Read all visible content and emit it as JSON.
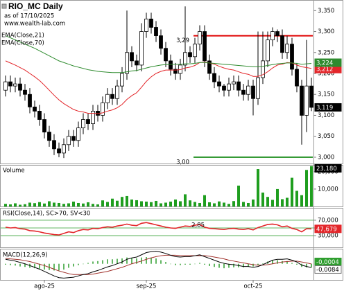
{
  "chart_data": [
    {
      "type": "candlestick",
      "title": "RIO_MC Daily",
      "subtitle": "as of 17/10/2025",
      "source": "www.wealth-lab.com",
      "categories": [
        null,
        null,
        null,
        null,
        null,
        null,
        null,
        null,
        "ago-25",
        null,
        null,
        null,
        null,
        null,
        null,
        null,
        null,
        null,
        null,
        null,
        null,
        null,
        null,
        null,
        null,
        null,
        null,
        null,
        null,
        "sep-25",
        null,
        null,
        null,
        null,
        null,
        null,
        null,
        null,
        null,
        null,
        null,
        null,
        null,
        null,
        null,
        null,
        null,
        null,
        null,
        null,
        null,
        "oct-25",
        null,
        null,
        null,
        null,
        null,
        null,
        null,
        null,
        null,
        null,
        null,
        null
      ],
      "open": [
        3.16,
        3.18,
        3.17,
        3.175,
        3.16,
        3.15,
        3.12,
        3.11,
        3.09,
        3.06,
        3.04,
        3.02,
        3.01,
        3.03,
        3.05,
        3.04,
        3.07,
        3.09,
        3.08,
        3.11,
        3.1,
        3.13,
        3.15,
        3.14,
        3.17,
        3.2,
        3.25,
        3.23,
        3.22,
        3.3,
        3.33,
        3.31,
        3.29,
        3.26,
        3.23,
        3.21,
        3.2,
        3.22,
        3.25,
        3.24,
        3.27,
        3.3,
        3.23,
        3.2,
        3.18,
        3.17,
        3.16,
        3.175,
        3.18,
        3.16,
        3.15,
        3.17,
        3.14,
        3.19,
        3.23,
        3.28,
        3.3,
        3.29,
        3.25,
        3.27,
        3.21,
        3.17,
        3.1,
        3.17
      ],
      "high": [
        3.195,
        3.195,
        3.19,
        3.19,
        3.175,
        3.165,
        3.135,
        3.125,
        3.105,
        3.075,
        3.055,
        3.035,
        3.045,
        3.065,
        3.065,
        3.085,
        3.105,
        3.105,
        3.125,
        3.125,
        3.145,
        3.165,
        3.165,
        3.185,
        3.215,
        3.35,
        3.265,
        3.245,
        3.32,
        3.345,
        3.345,
        3.325,
        3.305,
        3.275,
        3.245,
        3.225,
        3.235,
        3.36,
        3.265,
        3.285,
        3.315,
        3.315,
        3.245,
        3.215,
        3.195,
        3.175,
        3.19,
        3.195,
        3.195,
        3.175,
        3.185,
        3.185,
        3.3,
        3.3,
        3.3,
        3.31,
        3.305,
        3.305,
        3.29,
        3.285,
        3.225,
        3.185,
        3.28,
        3.19
      ],
      "low": [
        3.145,
        3.155,
        3.155,
        3.145,
        3.135,
        3.105,
        3.095,
        3.075,
        3.045,
        3.025,
        3.005,
        3.0,
        2.998,
        3.015,
        3.025,
        3.025,
        3.055,
        3.065,
        3.065,
        3.085,
        3.085,
        3.115,
        3.125,
        3.125,
        3.155,
        3.185,
        3.215,
        3.205,
        3.205,
        3.285,
        3.295,
        3.275,
        3.245,
        3.215,
        3.195,
        3.185,
        3.185,
        3.205,
        3.225,
        3.225,
        3.255,
        3.215,
        3.185,
        3.165,
        3.155,
        3.145,
        3.145,
        3.16,
        3.145,
        3.135,
        3.135,
        3.1,
        3.125,
        3.175,
        3.215,
        3.265,
        3.275,
        3.235,
        3.235,
        3.195,
        3.155,
        3.03,
        3.06,
        3.11
      ],
      "close": [
        3.18,
        3.17,
        3.175,
        3.16,
        3.15,
        3.12,
        3.11,
        3.09,
        3.06,
        3.04,
        3.02,
        3.01,
        3.03,
        3.05,
        3.04,
        3.07,
        3.09,
        3.08,
        3.11,
        3.1,
        3.13,
        3.15,
        3.14,
        3.17,
        3.2,
        3.25,
        3.23,
        3.22,
        3.3,
        3.33,
        3.31,
        3.29,
        3.26,
        3.23,
        3.21,
        3.2,
        3.22,
        3.25,
        3.24,
        3.27,
        3.3,
        3.23,
        3.2,
        3.18,
        3.17,
        3.16,
        3.175,
        3.18,
        3.16,
        3.15,
        3.17,
        3.14,
        3.19,
        3.23,
        3.28,
        3.3,
        3.29,
        3.25,
        3.27,
        3.21,
        3.17,
        3.1,
        3.17,
        3.119
      ],
      "close_label": "3,119",
      "up_color": "#ffffff",
      "down_color": "#000000",
      "series": [
        {
          "name": "EMA(Close,21)",
          "color": "#e3262a",
          "last_label": "3,212",
          "values": [
            3.23,
            3.225,
            3.22,
            3.214,
            3.208,
            3.2,
            3.192,
            3.183,
            3.172,
            3.16,
            3.148,
            3.137,
            3.128,
            3.121,
            3.114,
            3.11,
            3.108,
            3.105,
            3.105,
            3.104,
            3.106,
            3.11,
            3.113,
            3.118,
            3.126,
            3.138,
            3.147,
            3.154,
            3.167,
            3.181,
            3.192,
            3.2,
            3.205,
            3.208,
            3.208,
            3.208,
            3.209,
            3.213,
            3.215,
            3.219,
            3.226,
            3.227,
            3.225,
            3.222,
            3.217,
            3.213,
            3.21,
            3.208,
            3.204,
            3.2,
            3.198,
            3.193,
            3.193,
            3.197,
            3.204,
            3.213,
            3.22,
            3.222,
            3.226,
            3.225,
            3.22,
            3.216,
            3.214,
            3.212
          ]
        },
        {
          "name": "EMA(Close,70)",
          "color": "#2e8b2e",
          "last_label": "3,224",
          "values": [
            3.29,
            3.285,
            3.28,
            3.275,
            3.27,
            3.265,
            3.26,
            3.254,
            3.248,
            3.242,
            3.236,
            3.23,
            3.226,
            3.222,
            3.218,
            3.215,
            3.212,
            3.209,
            3.207,
            3.205,
            3.204,
            3.203,
            3.202,
            3.202,
            3.202,
            3.204,
            3.206,
            3.207,
            3.21,
            3.213,
            3.216,
            3.218,
            3.22,
            3.221,
            3.222,
            3.222,
            3.222,
            3.223,
            3.223,
            3.224,
            3.226,
            3.226,
            3.225,
            3.224,
            3.223,
            3.222,
            3.221,
            3.22,
            3.219,
            3.218,
            3.217,
            3.216,
            3.216,
            3.217,
            3.219,
            3.221,
            3.223,
            3.224,
            3.225,
            3.225,
            3.224,
            3.222,
            3.223,
            3.224
          ]
        }
      ],
      "levels": [
        {
          "value": 3.29,
          "label": "3,29",
          "color": "#e00000",
          "from": 39,
          "to": 63
        },
        {
          "value": 3.0,
          "label": "3,00",
          "color": "#1f8f1f",
          "from": 39,
          "to": 63
        }
      ],
      "ylim": [
        2.985,
        3.372
      ],
      "yticks": [
        {
          "value": 3.0,
          "label": "3,000"
        },
        {
          "value": 3.05,
          "label": "3,050"
        },
        {
          "value": 3.1,
          "label": "3,100"
        },
        {
          "value": 3.15,
          "label": "3,150"
        },
        {
          "value": 3.2,
          "label": "3,200"
        },
        {
          "value": 3.25,
          "label": "3,250"
        },
        {
          "value": 3.3,
          "label": "3,300"
        },
        {
          "value": 3.35,
          "label": "3,350"
        }
      ]
    },
    {
      "type": "bar",
      "title": "Volume",
      "color": "#1f9e1f",
      "last_label": "23,180",
      "values": [
        1.5,
        1.2,
        1.8,
        1.0,
        1.3,
        2.2,
        1.9,
        2.5,
        1.7,
        3.0,
        2.2,
        2.0,
        1.5,
        1.8,
        2.8,
        2.0,
        1.7,
        2.4,
        1.5,
        1.2,
        3.5,
        2.6,
        4.5,
        3.3,
        5.5,
        6.0,
        4.0,
        3.6,
        3.0,
        2.8,
        2.5,
        3.2,
        1.8,
        2.2,
        2.8,
        4.0,
        3.0,
        7.0,
        3.5,
        2.6,
        2.0,
        6.5,
        2.4,
        1.8,
        2.9,
        2.2,
        1.5,
        3.1,
        12.0,
        2.6,
        2.0,
        4.0,
        21.5,
        8.0,
        5.5,
        3.8,
        10.0,
        4.2,
        5.0,
        16.5,
        9.0,
        6.5,
        21.0,
        23.18
      ],
      "ylim": [
        0,
        23.5
      ],
      "yticks": [
        {
          "value": 10,
          "label": "10,000"
        },
        {
          "value": 20,
          "label": "20,000"
        }
      ]
    },
    {
      "type": "line",
      "title": "RSI(Close,14), SC>70, SV<30",
      "color": "#e3262a",
      "grid_color": "#2e9e2e",
      "last_label": "47,679",
      "annotation": "2,85",
      "values": [
        52,
        50,
        51,
        48,
        47,
        43,
        42,
        40,
        37,
        35,
        33,
        32,
        36,
        40,
        38,
        43,
        46,
        45,
        49,
        48,
        51,
        53,
        52,
        55,
        57,
        60,
        57,
        56,
        62,
        64,
        61,
        58,
        55,
        52,
        50,
        49,
        52,
        55,
        54,
        57,
        59,
        52,
        49,
        48,
        47,
        46,
        48,
        49,
        47,
        46,
        48,
        45,
        51,
        55,
        59,
        60,
        58,
        53,
        55,
        49,
        46,
        40,
        48,
        47.679
      ],
      "ylim": [
        0,
        100
      ],
      "yticks": [
        {
          "value": 30,
          "label": "30,000"
        },
        {
          "value": 50,
          "label": "50,000"
        },
        {
          "value": 70,
          "label": "70,000"
        }
      ]
    },
    {
      "type": "macd",
      "title": "MACD(12,26,9)",
      "macd_color": "#000000",
      "signal_color": "#a0302a",
      "histogram_color": "#2e9e2e",
      "macd_label": "-0,0084",
      "signal_label": "-0,0004",
      "macd": [
        0.01,
        0.008,
        0.006,
        0.003,
        0.0,
        -0.004,
        -0.008,
        -0.012,
        -0.017,
        -0.022,
        -0.027,
        -0.031,
        -0.032,
        -0.031,
        -0.03,
        -0.027,
        -0.024,
        -0.022,
        -0.018,
        -0.015,
        -0.011,
        -0.007,
        -0.004,
        0.0,
        0.004,
        0.01,
        0.013,
        0.015,
        0.02,
        0.025,
        0.027,
        0.028,
        0.026,
        0.023,
        0.019,
        0.016,
        0.015,
        0.016,
        0.016,
        0.018,
        0.02,
        0.016,
        0.012,
        0.008,
        0.004,
        0.001,
        -0.001,
        -0.002,
        -0.004,
        -0.006,
        -0.006,
        -0.008,
        -0.006,
        -0.002,
        0.003,
        0.008,
        0.01,
        0.01,
        0.011,
        0.008,
        0.004,
        -0.003,
        -0.006,
        -0.0084
      ],
      "signal": [
        0.012,
        0.011,
        0.01,
        0.009,
        0.007,
        0.005,
        0.002,
        -0.001,
        -0.004,
        -0.008,
        -0.012,
        -0.016,
        -0.019,
        -0.022,
        -0.024,
        -0.024,
        -0.024,
        -0.024,
        -0.023,
        -0.021,
        -0.019,
        -0.017,
        -0.014,
        -0.011,
        -0.008,
        -0.004,
        0.0,
        0.003,
        0.006,
        0.01,
        0.013,
        0.016,
        0.018,
        0.019,
        0.019,
        0.019,
        0.018,
        0.018,
        0.018,
        0.018,
        0.018,
        0.018,
        0.017,
        0.015,
        0.013,
        0.011,
        0.008,
        0.006,
        0.004,
        0.002,
        0.0,
        -0.002,
        -0.003,
        -0.003,
        -0.002,
        0.0,
        0.002,
        0.004,
        0.005,
        0.006,
        0.006,
        0.004,
        0.002,
        -0.0004
      ],
      "histogram": [
        -0.002,
        -0.003,
        -0.004,
        -0.006,
        -0.007,
        -0.009,
        -0.01,
        -0.011,
        -0.013,
        -0.014,
        -0.015,
        -0.015,
        -0.013,
        -0.009,
        -0.006,
        -0.003,
        0.0,
        0.002,
        0.005,
        0.006,
        0.008,
        0.01,
        0.01,
        0.011,
        0.012,
        0.014,
        0.013,
        0.012,
        0.014,
        0.015,
        0.014,
        0.012,
        0.008,
        0.004,
        0.0,
        -0.003,
        -0.003,
        -0.002,
        -0.002,
        0.0,
        0.002,
        -0.002,
        -0.005,
        -0.007,
        -0.009,
        -0.01,
        -0.009,
        -0.008,
        -0.008,
        -0.008,
        -0.006,
        -0.006,
        -0.003,
        0.001,
        0.005,
        0.008,
        0.008,
        0.006,
        0.006,
        0.002,
        -0.002,
        -0.007,
        -0.008,
        -0.008
      ],
      "ylim": [
        -0.036,
        0.032
      ]
    }
  ]
}
